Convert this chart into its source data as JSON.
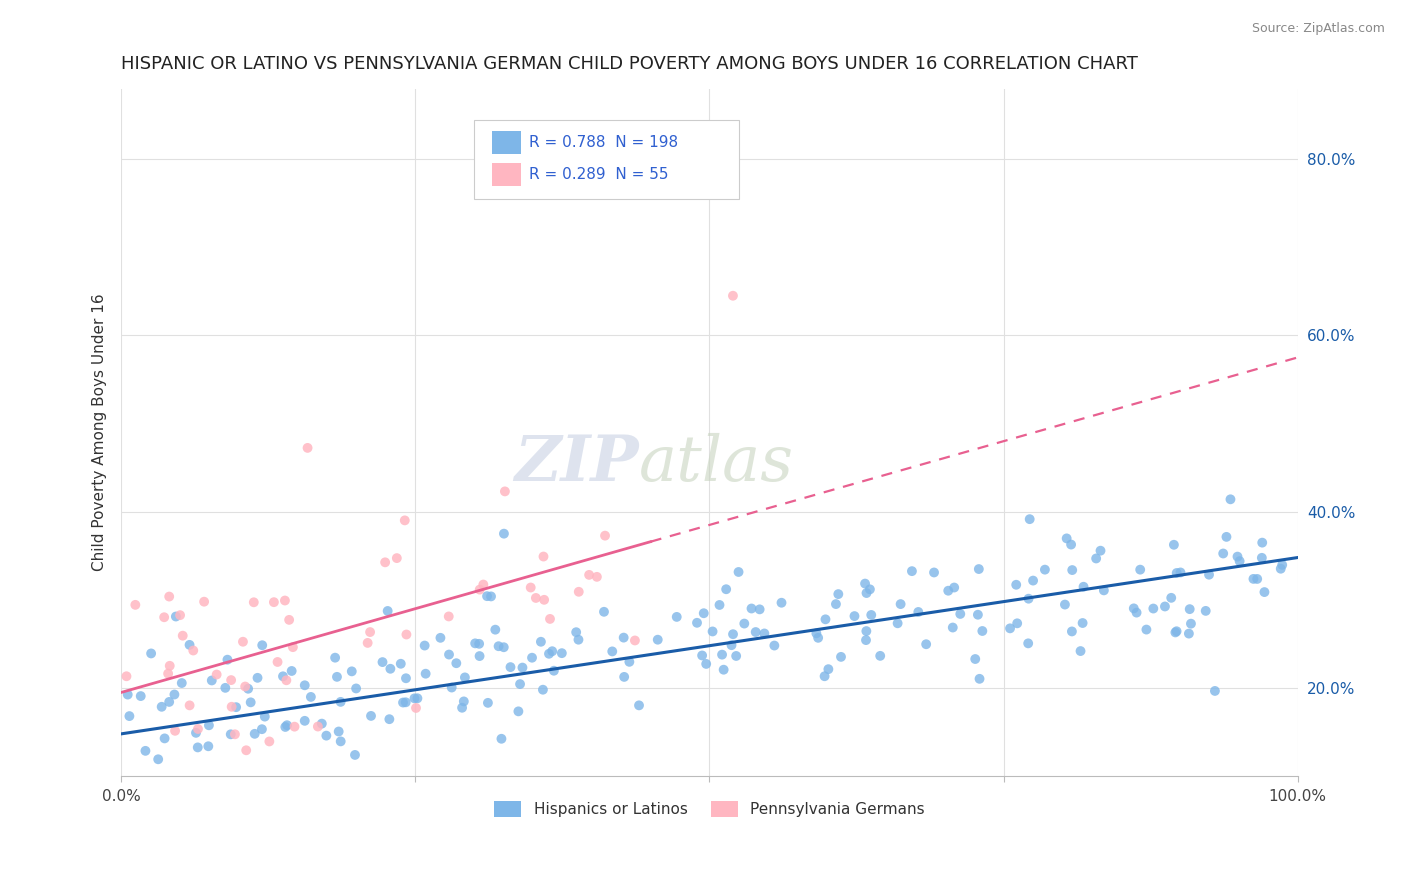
{
  "title": "HISPANIC OR LATINO VS PENNSYLVANIA GERMAN CHILD POVERTY AMONG BOYS UNDER 16 CORRELATION CHART",
  "source": "Source: ZipAtlas.com",
  "ylabel": "Child Poverty Among Boys Under 16",
  "xlim": [
    0,
    1.0
  ],
  "ylim": [
    0.1,
    0.88
  ],
  "yticks": [
    0.2,
    0.4,
    0.6,
    0.8
  ],
  "ytick_labels": [
    "20.0%",
    "40.0%",
    "60.0%",
    "80.0%"
  ],
  "blue_R": 0.788,
  "blue_N": 198,
  "pink_R": 0.289,
  "pink_N": 55,
  "blue_color": "#7EB6E8",
  "pink_color": "#FFB6C1",
  "blue_line_color": "#1A5CA8",
  "pink_line_color": "#E86090",
  "blue_label": "Hispanics or Latinos",
  "pink_label": "Pennsylvania Germans",
  "legend_R_color": "#3060D0",
  "watermark_zip": "ZIP",
  "watermark_atlas": "atlas",
  "background_color": "#FFFFFF",
  "grid_color": "#E0E0E0",
  "title_fontsize": 13,
  "axis_label_fontsize": 11,
  "tick_fontsize": 11,
  "blue_seed": 42,
  "pink_seed": 123,
  "blue_intercept": 0.148,
  "blue_slope": 0.2,
  "pink_intercept": 0.195,
  "pink_slope": 0.38
}
